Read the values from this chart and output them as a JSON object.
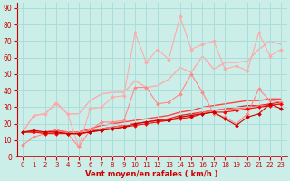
{
  "background_color": "#cceee8",
  "grid_color": "#aaddda",
  "xlabel": "Vent moyen/en rafales ( km/h )",
  "ylabel_ticks": [
    0,
    10,
    20,
    30,
    40,
    50,
    60,
    70,
    80,
    90
  ],
  "xlim": [
    -0.5,
    23.5
  ],
  "ylim": [
    0,
    93
  ],
  "x": [
    0,
    1,
    2,
    3,
    4,
    5,
    6,
    7,
    8,
    9,
    10,
    11,
    12,
    13,
    14,
    15,
    16,
    17,
    18,
    19,
    20,
    21,
    22,
    23
  ],
  "lines": [
    {
      "color": "#ffaaaa",
      "y": [
        15,
        25,
        26,
        33,
        26,
        26,
        34,
        38,
        39,
        39,
        46,
        42,
        43,
        47,
        54,
        51,
        61,
        53,
        57,
        57,
        58,
        65,
        70,
        68
      ],
      "marker": null,
      "linewidth": 1.0,
      "linestyle": "-",
      "zorder": 2
    },
    {
      "color": "#ffaaaa",
      "y": [
        15,
        25,
        26,
        32,
        26,
        6,
        29,
        30,
        36,
        37,
        75,
        57,
        65,
        59,
        85,
        65,
        68,
        70,
        53,
        55,
        52,
        75,
        61,
        65
      ],
      "marker": "D",
      "markersize": 2.0,
      "linewidth": 0.8,
      "linestyle": "-",
      "zorder": 3
    },
    {
      "color": "#ff8888",
      "y": [
        7,
        12,
        14,
        15,
        14,
        6,
        16,
        21,
        21,
        22,
        42,
        42,
        32,
        33,
        38,
        50,
        39,
        26,
        24,
        20,
        26,
        41,
        34,
        33
      ],
      "marker": "D",
      "markersize": 2.0,
      "linewidth": 0.8,
      "linestyle": "-",
      "zorder": 3
    },
    {
      "color": "#ff4444",
      "y": [
        15,
        15,
        15,
        16,
        15,
        15,
        17,
        19,
        20,
        21,
        22,
        23,
        24,
        25,
        27,
        28,
        30,
        31,
        32,
        33,
        34,
        34,
        35,
        35
      ],
      "marker": null,
      "linewidth": 1.0,
      "linestyle": "-",
      "zorder": 2
    },
    {
      "color": "#dd2222",
      "y": [
        15,
        15,
        15,
        15,
        14,
        14,
        15,
        17,
        18,
        19,
        20,
        21,
        22,
        23,
        25,
        26,
        27,
        28,
        29,
        30,
        31,
        31,
        32,
        33
      ],
      "marker": null,
      "linewidth": 0.9,
      "linestyle": "-",
      "zorder": 2
    },
    {
      "color": "#ff0000",
      "y": [
        15,
        15,
        14,
        14,
        14,
        14,
        15,
        16,
        17,
        18,
        19,
        20,
        21,
        22,
        23,
        24,
        26,
        27,
        27,
        28,
        29,
        30,
        31,
        32
      ],
      "marker": "D",
      "markersize": 2.0,
      "linewidth": 0.8,
      "linestyle": "-",
      "zorder": 3
    },
    {
      "color": "#cc0000",
      "y": [
        15,
        16,
        15,
        15,
        14,
        14,
        15,
        16,
        17,
        18,
        20,
        21,
        22,
        22,
        24,
        25,
        26,
        27,
        23,
        19,
        24,
        26,
        32,
        29
      ],
      "marker": "D",
      "markersize": 2.0,
      "linewidth": 0.8,
      "linestyle": "-",
      "zorder": 3
    },
    {
      "color": "#ff6666",
      "y": [
        15,
        15,
        15,
        16,
        15,
        15,
        16,
        17,
        18,
        19,
        20,
        21,
        22,
        22,
        24,
        25,
        27,
        28,
        29,
        29,
        30,
        31,
        31,
        32
      ],
      "marker": null,
      "linewidth": 0.9,
      "linestyle": "-",
      "zorder": 2
    }
  ],
  "tick_label_color": "#cc0000",
  "axis_label_color": "#cc0000"
}
